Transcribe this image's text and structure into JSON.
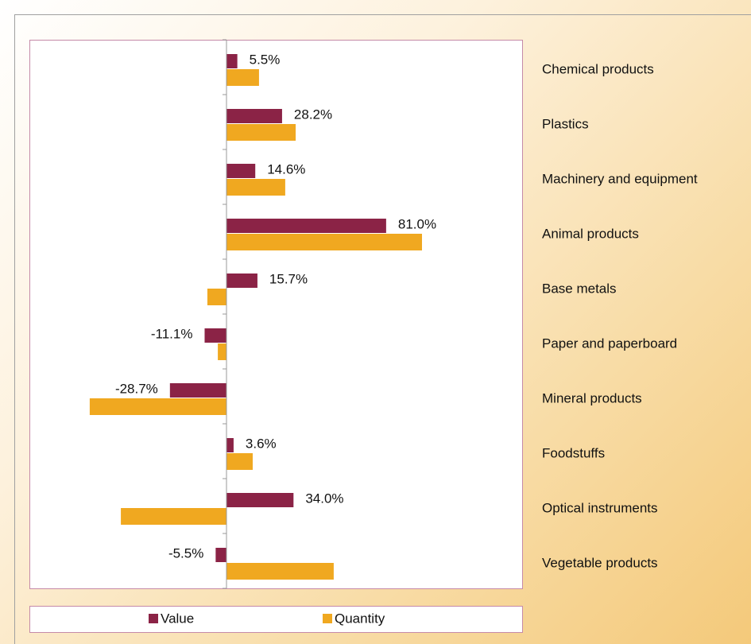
{
  "chart_data": {
    "type": "barh",
    "categories": [
      "Chemical products",
      "Plastics",
      "Machinery and equipment",
      "Animal products",
      "Base metals",
      "Paper and paperboard",
      "Mineral products",
      "Foodstuffs",
      "Optical instruments",
      "Vegetable products"
    ],
    "series": [
      {
        "name": "Value",
        "color": "#8b2346",
        "values": [
          5.5,
          28.2,
          14.6,
          81.0,
          15.7,
          -11.1,
          -28.7,
          3.6,
          34.0,
          -5.5
        ],
        "value_labels": [
          "5.5%",
          "28.2%",
          "14.6%",
          "81.0%",
          "15.7%",
          "-11.1%",
          "-28.7%",
          "3.6%",
          "34.0%",
          "-5.5%"
        ]
      },
      {
        "name": "Quantity",
        "color": "#f0a820",
        "values": [
          16.5,
          35.1,
          29.8,
          99.2,
          -9.7,
          -4.4,
          -69.4,
          13.3,
          -53.6,
          54.4
        ]
      }
    ],
    "xlim": [
      -100,
      150
    ],
    "legend": "bottom"
  }
}
